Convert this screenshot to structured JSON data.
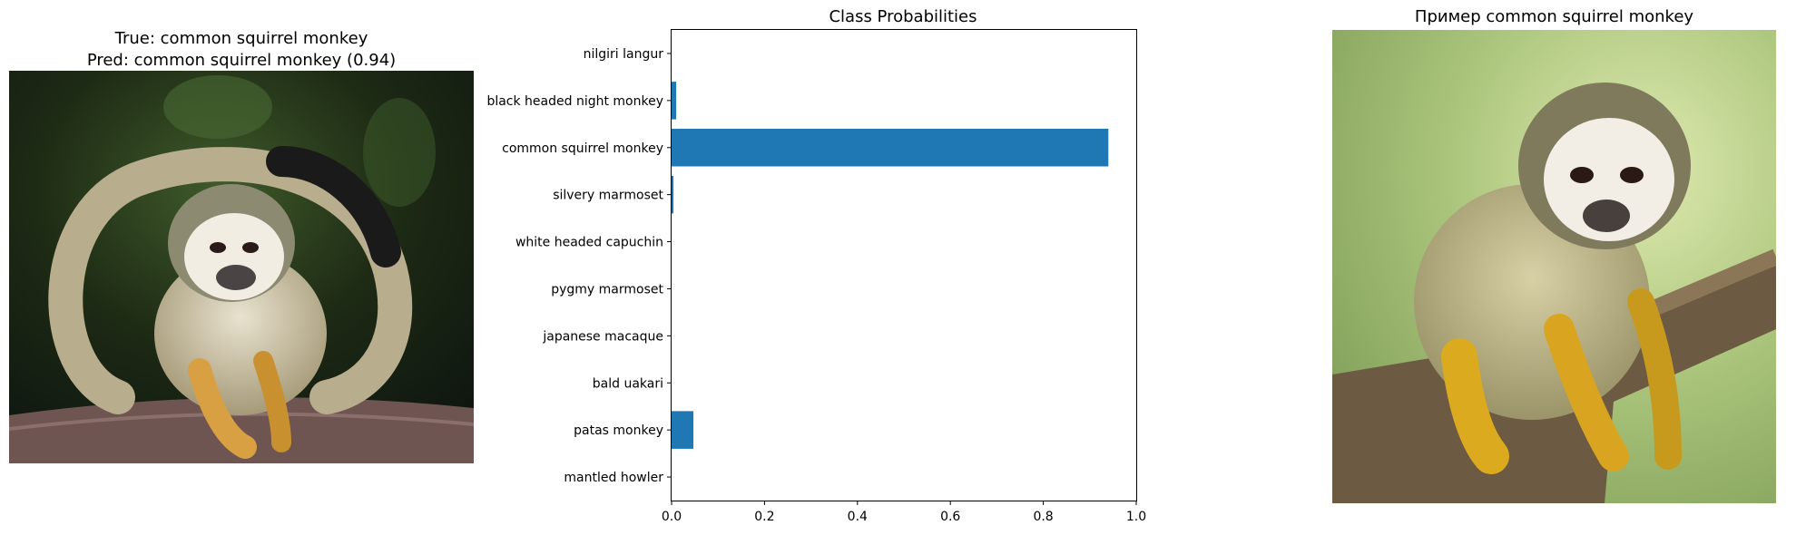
{
  "left_panel": {
    "title_line1": "True: common squirrel monkey",
    "title_line2": "Pred: common squirrel monkey (0.94)",
    "image_subject": "common squirrel monkey sitting on a branch, dark background"
  },
  "right_panel": {
    "title": "Пример common squirrel monkey",
    "image_subject": "common squirrel monkey on a tree branch, green blurred background"
  },
  "chart_data": {
    "type": "bar",
    "orientation": "horizontal",
    "title": "Class Probabilities",
    "xlabel": "",
    "ylabel": "",
    "xlim": [
      0,
      1.0
    ],
    "xticks": [
      0.0,
      0.2,
      0.4,
      0.6,
      0.8,
      1.0
    ],
    "xtick_labels": [
      "0.0",
      "0.2",
      "0.4",
      "0.6",
      "0.8",
      "1.0"
    ],
    "grid": false,
    "bar_color": "#1f77b4",
    "categories": [
      "nilgiri langur",
      "black headed night monkey",
      "common squirrel monkey",
      "silvery marmoset",
      "white headed capuchin",
      "pygmy marmoset",
      "japanese macaque",
      "bald uakari",
      "patas monkey",
      "mantled howler"
    ],
    "values": [
      0.0,
      0.01,
      0.94,
      0.004,
      0.0,
      0.0,
      0.0,
      0.0,
      0.047,
      0.0
    ]
  }
}
